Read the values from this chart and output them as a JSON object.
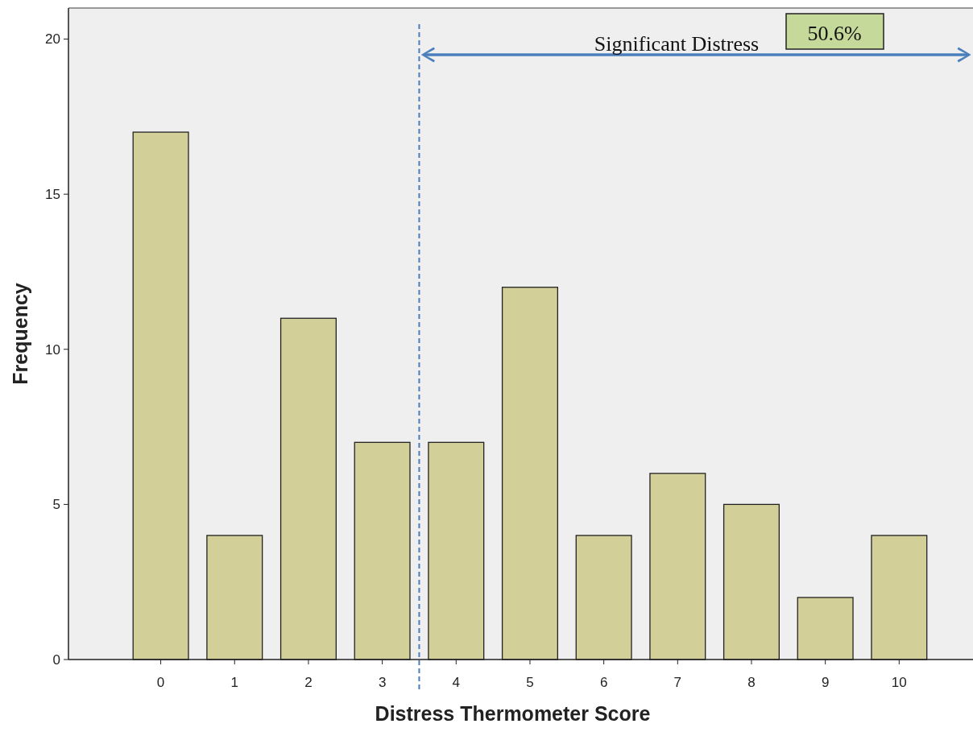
{
  "chart_data": {
    "type": "bar",
    "xlabel": "Distress Thermometer Score",
    "ylabel": "Frequency",
    "x": [
      0,
      1,
      2,
      3,
      4,
      5,
      6,
      7,
      8,
      9,
      10
    ],
    "values": [
      17,
      4,
      11,
      7,
      7,
      12,
      4,
      6,
      5,
      2,
      4
    ],
    "color": "#d3cf98",
    "xlim": [
      -1.25,
      11
    ],
    "xticks": [
      0,
      1,
      2,
      3,
      4,
      5,
      6,
      7,
      8,
      9,
      10
    ],
    "ylim": [
      0,
      21
    ],
    "yticks": [
      0,
      5,
      10,
      15,
      20
    ],
    "grid": false,
    "ref_lines": [
      {
        "axis": "x",
        "value": 3.5,
        "color": "#4a7ebb",
        "line_style": "dashed"
      }
    ],
    "annotations": [
      "Significant Distress",
      "50.6%"
    ]
  }
}
